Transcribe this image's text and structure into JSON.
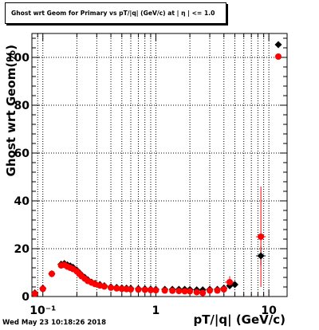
{
  "title": "Ghost wrt Geom for Primary vs pT/|q| (GeV/c) at | η | <= 1.0",
  "timestamp": "Wed May 23 10:18:26 2018",
  "colors": {
    "series_black": "#000000",
    "series_red": "#ff0000",
    "grid": "#000000"
  },
  "chart_data": {
    "type": "scatter",
    "title": "Ghost wrt Geom for Primary vs pT/|q| (GeV/c) at | η | <= 1.0",
    "xlabel": "pT/|q| (GeV/c)",
    "ylabel": "Ghost wrt Geom(%)",
    "xscale": "log",
    "xlim": [
      0.08,
      14.5
    ],
    "ylim": [
      0,
      110
    ],
    "x_ticks": [
      0.1,
      1,
      10
    ],
    "x_tick_labels": [
      "10⁻¹",
      "1",
      "10"
    ],
    "y_ticks": [
      0,
      20,
      40,
      60,
      80,
      100
    ],
    "y_tick_labels": [
      "0",
      "20",
      "40",
      "60",
      "80",
      "100"
    ],
    "grid": true,
    "legend": "top-right",
    "series": [
      {
        "color": "#000000",
        "marker": "diamond",
        "points": [
          [
            0.085,
            1.5
          ],
          [
            0.1,
            3.5
          ],
          [
            0.12,
            9.5
          ],
          [
            0.145,
            13.5
          ],
          [
            0.155,
            13.8
          ],
          [
            0.165,
            13.2
          ],
          [
            0.175,
            12.8
          ],
          [
            0.185,
            12.2
          ],
          [
            0.2,
            11.0
          ],
          [
            0.21,
            10.0
          ],
          [
            0.22,
            9.0
          ],
          [
            0.235,
            8.0
          ],
          [
            0.25,
            7.0
          ],
          [
            0.27,
            6.0
          ],
          [
            0.29,
            5.5
          ],
          [
            0.32,
            5.0
          ],
          [
            0.35,
            4.5
          ],
          [
            0.4,
            4.0
          ],
          [
            0.45,
            3.8
          ],
          [
            0.5,
            3.6
          ],
          [
            0.55,
            3.5
          ],
          [
            0.6,
            3.4
          ],
          [
            0.7,
            3.3
          ],
          [
            0.8,
            3.2
          ],
          [
            0.9,
            3.1
          ],
          [
            1.0,
            3.0
          ],
          [
            1.2,
            3.0
          ],
          [
            1.4,
            3.0
          ],
          [
            1.6,
            3.0
          ],
          [
            1.8,
            3.0
          ],
          [
            2.0,
            2.9
          ],
          [
            2.3,
            2.8
          ],
          [
            2.6,
            2.8
          ],
          [
            3.0,
            3.0
          ],
          [
            3.5,
            3.0
          ],
          [
            4.0,
            3.5
          ],
          [
            4.5,
            4.5
          ],
          [
            5.0,
            5.0
          ],
          [
            8.5,
            17.0
          ]
        ],
        "errors": [
          [
            8.5,
            4.0
          ]
        ]
      },
      {
        "color": "#ff0000",
        "marker": "circle",
        "points": [
          [
            0.085,
            1.2
          ],
          [
            0.1,
            3.2
          ],
          [
            0.12,
            9.5
          ],
          [
            0.145,
            13.0
          ],
          [
            0.155,
            13.2
          ],
          [
            0.165,
            12.5
          ],
          [
            0.175,
            12.0
          ],
          [
            0.185,
            11.5
          ],
          [
            0.2,
            10.5
          ],
          [
            0.21,
            9.5
          ],
          [
            0.22,
            8.5
          ],
          [
            0.235,
            7.5
          ],
          [
            0.25,
            6.5
          ],
          [
            0.27,
            5.8
          ],
          [
            0.29,
            5.2
          ],
          [
            0.32,
            4.6
          ],
          [
            0.35,
            4.2
          ],
          [
            0.4,
            3.7
          ],
          [
            0.45,
            3.4
          ],
          [
            0.5,
            3.2
          ],
          [
            0.55,
            3.1
          ],
          [
            0.6,
            3.0
          ],
          [
            0.7,
            2.9
          ],
          [
            0.8,
            2.8
          ],
          [
            0.9,
            2.7
          ],
          [
            1.0,
            2.6
          ],
          [
            1.2,
            2.5
          ],
          [
            1.4,
            2.4
          ],
          [
            1.6,
            2.3
          ],
          [
            1.8,
            2.2
          ],
          [
            2.0,
            2.2
          ],
          [
            2.3,
            1.8
          ],
          [
            2.6,
            1.5
          ],
          [
            3.0,
            2.5
          ],
          [
            3.5,
            2.5
          ],
          [
            4.0,
            3.0
          ],
          [
            4.5,
            6.0
          ],
          [
            8.5,
            25.0
          ]
        ],
        "errors": [
          [
            8.5,
            21.0
          ],
          [
            4.5,
            2.5
          ]
        ]
      }
    ]
  }
}
